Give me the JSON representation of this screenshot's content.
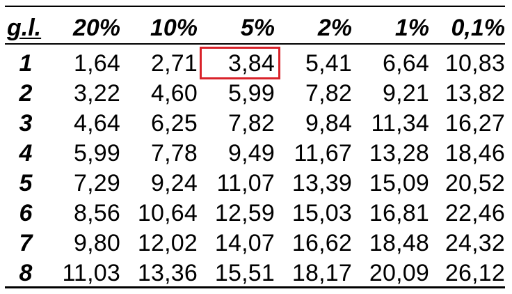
{
  "table": {
    "headers": [
      "g.l.",
      "20%",
      "10%",
      "5%",
      "2%",
      "1%",
      "0,1%"
    ],
    "rows": [
      {
        "df": "1",
        "values": [
          "1,64",
          "2,71",
          "3,84",
          "5,41",
          "6,64",
          "10,83"
        ]
      },
      {
        "df": "2",
        "values": [
          "3,22",
          "4,60",
          "5,99",
          "7,82",
          "9,21",
          "13,82"
        ]
      },
      {
        "df": "3",
        "values": [
          "4,64",
          "6,25",
          "7,82",
          "9,84",
          "11,34",
          "16,27"
        ]
      },
      {
        "df": "4",
        "values": [
          "5,99",
          "7,78",
          "9,49",
          "11,67",
          "13,28",
          "18,46"
        ]
      },
      {
        "df": "5",
        "values": [
          "7,29",
          "9,24",
          "11,07",
          "13,39",
          "15,09",
          "20,52"
        ]
      },
      {
        "df": "6",
        "values": [
          "8,56",
          "10,64",
          "12,59",
          "15,03",
          "16,81",
          "22,46"
        ]
      },
      {
        "df": "7",
        "values": [
          "9,80",
          "12,02",
          "14,07",
          "16,62",
          "18,48",
          "24,32"
        ]
      },
      {
        "df": "8",
        "values": [
          "11,03",
          "13,36",
          "15,51",
          "18,17",
          "20,09",
          "26,12"
        ]
      }
    ],
    "highlight": {
      "row": 0,
      "col": 2,
      "color": "#d9222a"
    }
  }
}
